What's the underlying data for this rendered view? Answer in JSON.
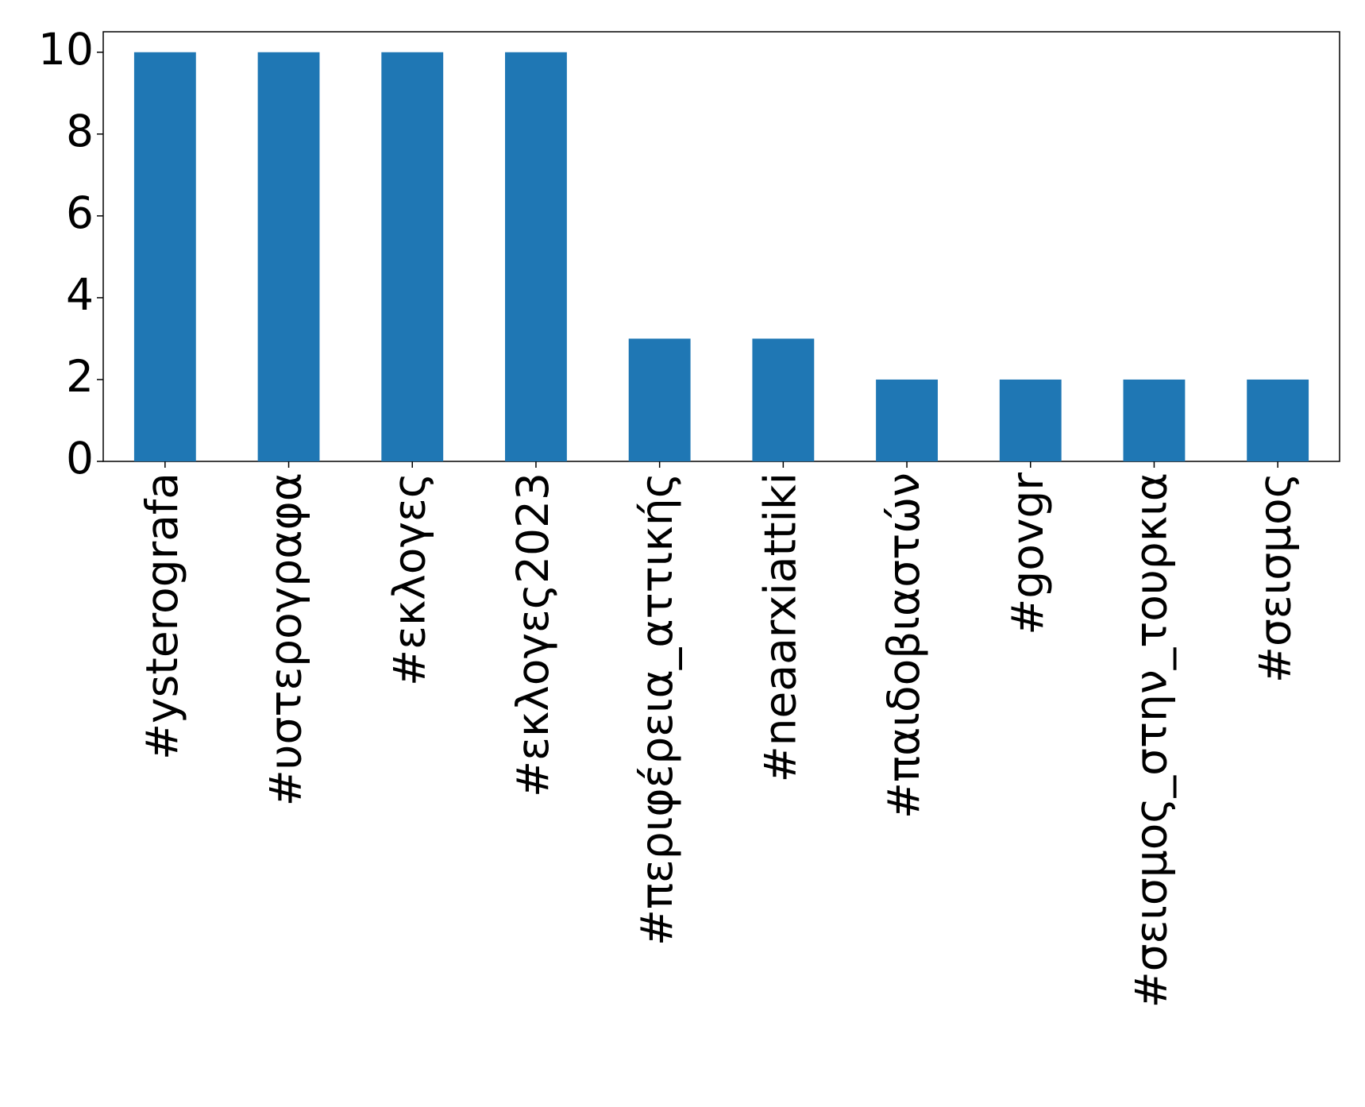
{
  "chart_data": {
    "type": "bar",
    "categories": [
      "#ysterografa",
      "#υστερογραφα",
      "#εκλογες",
      "#εκλογες2023",
      "#περιφέρεια_αττικής",
      "#neaarxiattiki",
      "#παιδοβιαστών",
      "#govgr",
      "#σεισμος_στην_τουρκια",
      "#σεισμος"
    ],
    "values": [
      10,
      10,
      10,
      10,
      3,
      3,
      2,
      2,
      2,
      2
    ],
    "color": "#1f77b4",
    "ylim": [
      0,
      10.5
    ],
    "yticks": [
      0,
      2,
      4,
      6,
      8,
      10
    ],
    "grid": false
  }
}
